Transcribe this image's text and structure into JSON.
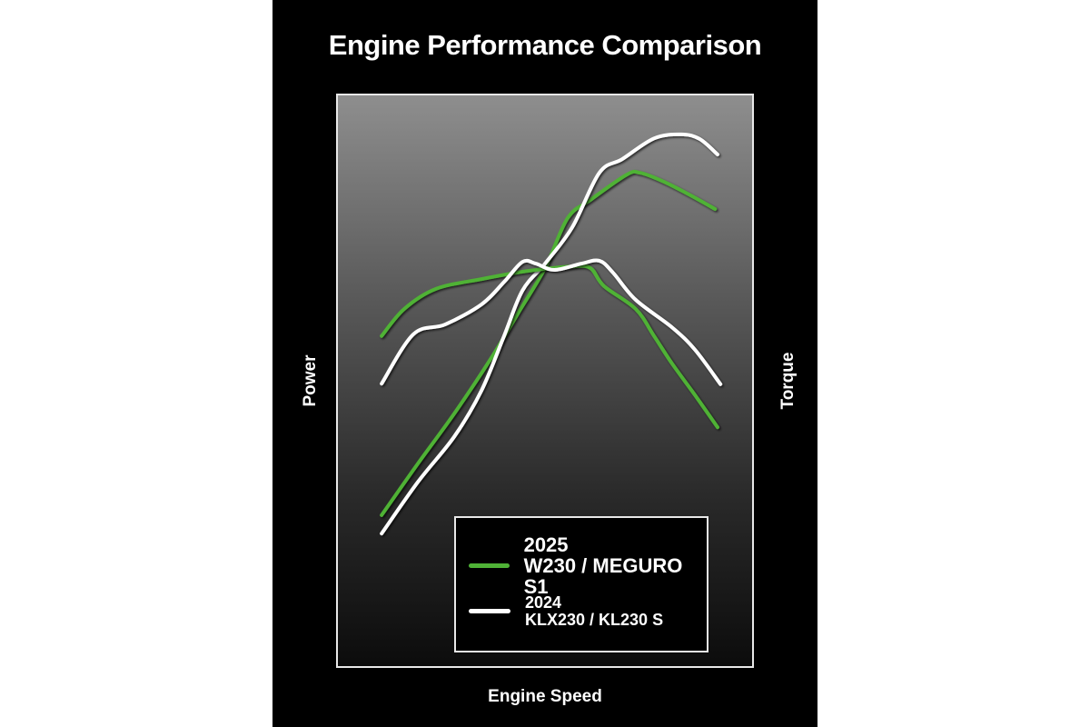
{
  "chart_data": {
    "type": "line",
    "title": "Engine Performance Comparison",
    "xlabel": "Engine Speed",
    "ylabel_left": "Power",
    "ylabel_right": "Torque",
    "xlim": [
      0,
      100
    ],
    "ylim": [
      0,
      100
    ],
    "grid": false,
    "legend_placement": "bottom-right",
    "series": [
      {
        "name": "2025 W230 / MEGURO S1",
        "year": "2025",
        "model": "W230 / MEGURO S1",
        "metric": "Power",
        "color": "#4fb236",
        "x": [
          10.9,
          19.6,
          28.3,
          37.0,
          43.5,
          50.0,
          55.4,
          60.9,
          69.6,
          72.8,
          78.3,
          84.8,
          90.7
        ],
        "y": [
          26.6,
          35.6,
          44.3,
          53.8,
          61.7,
          69.6,
          78.3,
          81.5,
          85.9,
          86.2,
          84.7,
          82.3,
          79.9
        ]
      },
      {
        "name": "2024 KLX230 / KL230 S",
        "year": "2024",
        "model": "KLX230 / KL230 S",
        "metric": "Power",
        "color": "#ffffff",
        "x": [
          10.9,
          19.6,
          28.3,
          34.8,
          40.2,
          44.6,
          50.0,
          56.5,
          63.0,
          68.5,
          76.1,
          82.6,
          87.0,
          91.3
        ],
        "y": [
          23.4,
          32.4,
          40.3,
          48.3,
          57.8,
          65.7,
          70.4,
          76.7,
          86.2,
          88.6,
          92.2,
          92.9,
          92.1,
          89.4
        ]
      },
      {
        "name": "2025 W230 / MEGURO S1",
        "metric": "Torque",
        "color": "#4fb236",
        "x": [
          10.9,
          16.3,
          23.9,
          34.8,
          45.7,
          56.5,
          60.9,
          64.1,
          71.7,
          76.1,
          80.4,
          85.9,
          91.3
        ],
        "y": [
          57.8,
          62.5,
          66.0,
          67.7,
          69.1,
          69.9,
          69.6,
          66.5,
          62.5,
          57.8,
          53.0,
          47.5,
          41.9
        ]
      },
      {
        "name": "2024 KLX230 / KL230 S",
        "metric": "Torque",
        "color": "#ffffff",
        "x": [
          10.9,
          18.5,
          26.1,
          34.8,
          40.2,
          44.6,
          47.8,
          52.2,
          58.7,
          63.0,
          66.3,
          71.7,
          80.4,
          85.9,
          92.0
        ],
        "y": [
          49.5,
          58.1,
          59.8,
          63.3,
          67.2,
          70.7,
          70.4,
          69.3,
          70.4,
          70.9,
          68.8,
          64.1,
          59.3,
          55.4,
          49.4
        ]
      }
    ],
    "legend": [
      {
        "year": "2025",
        "model": "W230 / MEGURO S1",
        "color": "#4fb236"
      },
      {
        "year": "2024",
        "model": "KLX230 / KL230 S",
        "color": "#ffffff"
      }
    ]
  }
}
